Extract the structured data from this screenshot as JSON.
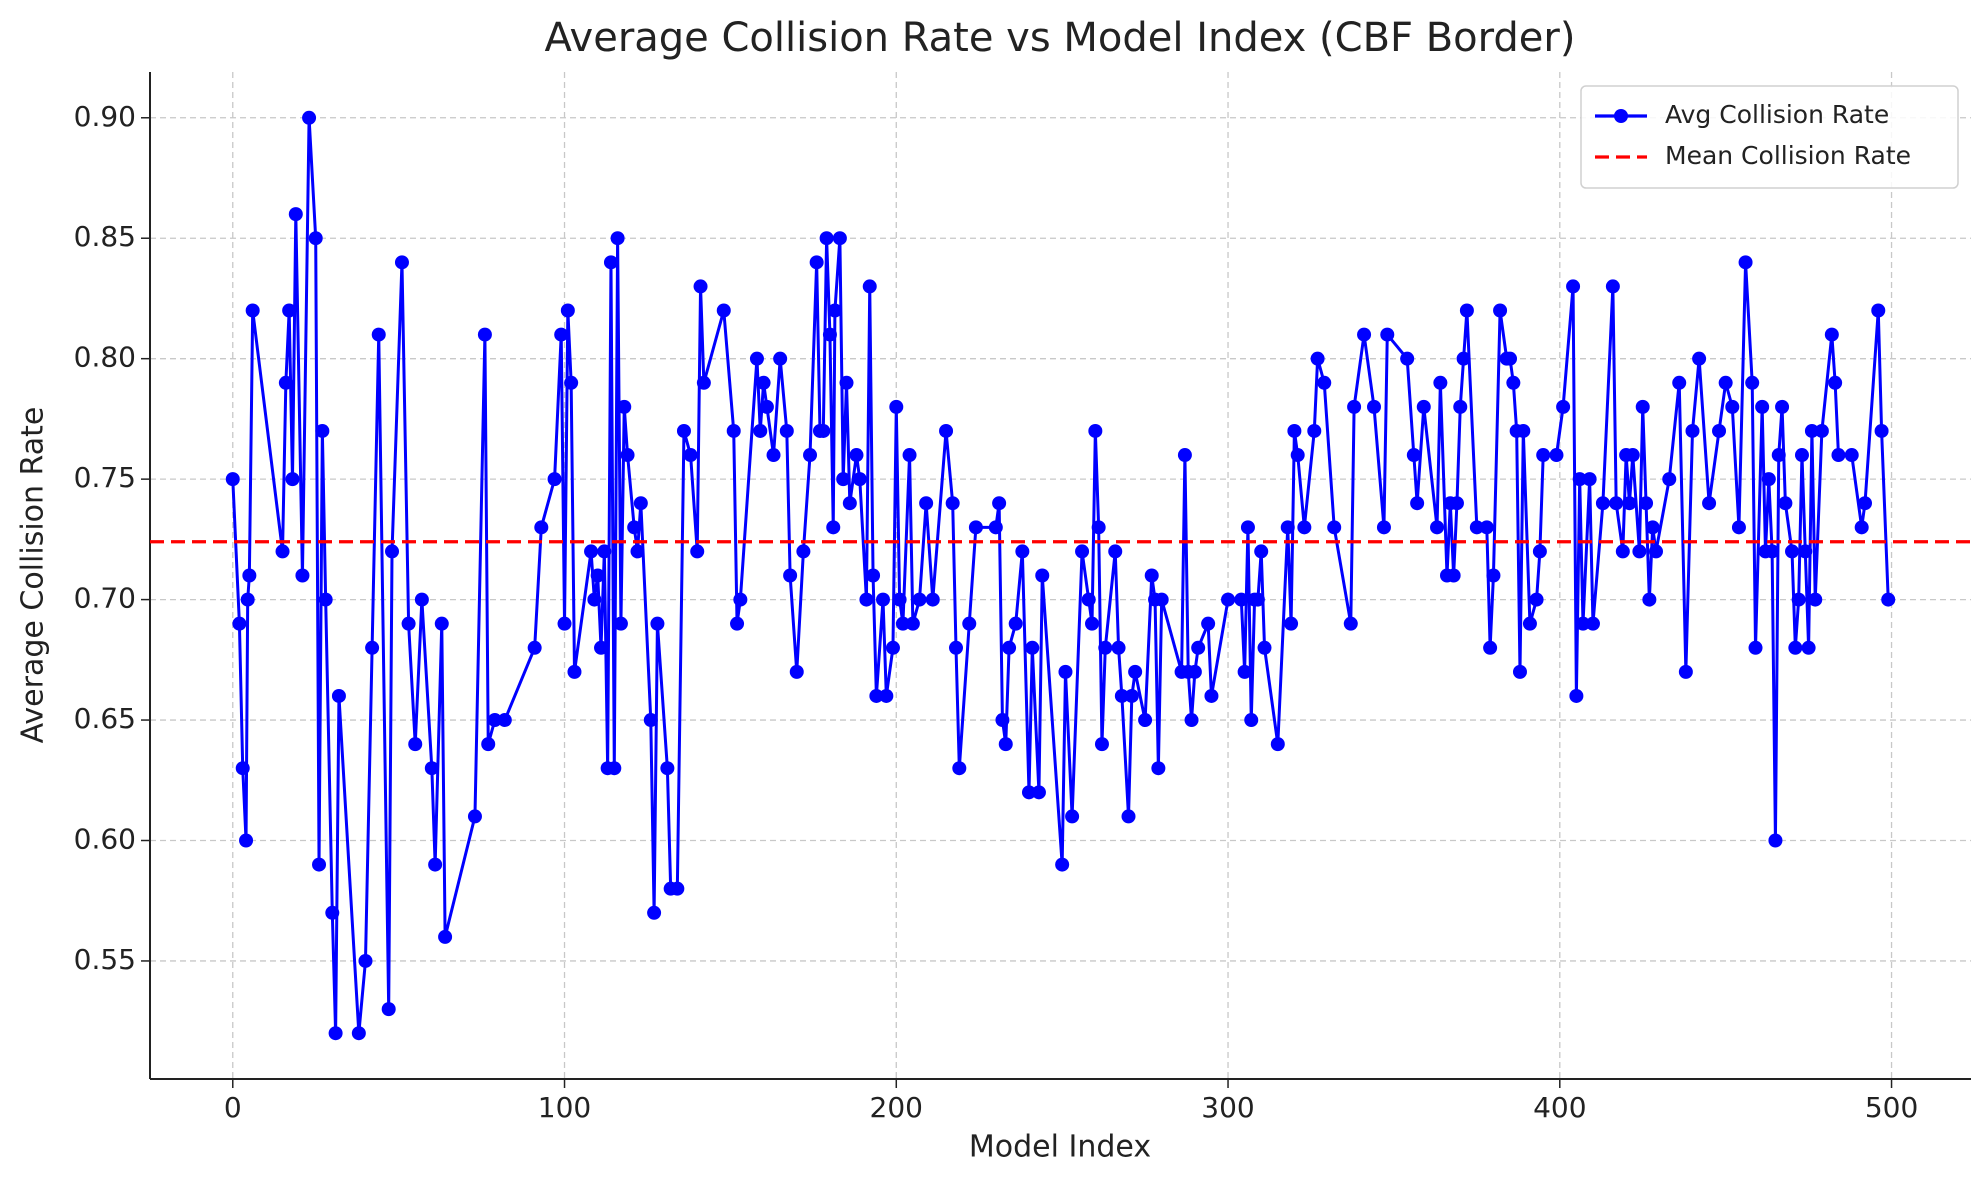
{
  "chart_data": {
    "type": "line",
    "title": "Average Collision Rate vs Model Index (CBF Border)",
    "x_label": "Model Index",
    "y_label": "Average Collision Rate",
    "x": [
      0,
      2,
      3,
      4,
      4.5,
      5,
      6,
      15,
      16,
      17,
      18,
      19,
      21,
      23,
      25,
      26,
      27,
      28,
      30,
      31,
      32,
      38,
      40,
      42,
      44,
      47,
      48,
      51,
      53,
      55,
      57,
      60,
      61,
      63,
      64,
      73,
      76,
      77,
      79,
      82,
      91,
      93,
      97,
      99,
      100,
      101,
      102,
      103,
      108,
      109,
      110,
      111,
      112,
      113,
      114,
      115,
      116,
      117,
      118,
      119,
      121,
      122,
      123,
      126,
      127,
      128,
      131,
      132,
      134,
      136,
      138,
      140,
      141,
      142,
      148,
      151,
      152,
      153,
      158,
      159,
      160,
      161,
      163,
      165,
      167,
      168,
      170,
      172,
      174,
      176,
      177,
      178,
      179,
      180,
      181,
      181.5,
      183,
      184,
      185,
      186,
      188,
      189,
      191,
      192,
      193,
      194,
      196,
      197,
      199,
      200,
      201,
      202,
      204,
      205,
      207,
      209,
      211,
      215,
      217,
      218,
      219,
      222,
      224,
      230,
      231,
      232,
      233,
      234,
      236,
      238,
      240,
      241,
      243,
      244,
      250,
      251,
      253,
      256,
      258,
      259,
      260,
      261,
      262,
      263,
      266,
      267,
      268,
      270,
      271,
      272,
      275,
      277,
      278,
      279,
      280,
      286,
      287,
      288,
      289,
      290,
      291,
      294,
      295,
      300,
      304,
      305,
      306,
      307,
      308,
      309,
      310,
      311,
      315,
      318,
      319,
      320,
      321,
      323,
      326,
      327,
      329,
      332,
      337,
      338,
      341,
      344,
      347,
      348,
      354,
      356,
      357,
      359,
      363,
      364,
      366,
      367,
      368,
      369,
      370,
      371,
      372,
      375,
      378,
      379,
      380,
      382,
      384,
      385,
      386,
      387,
      388,
      389,
      391,
      393,
      394,
      395,
      399,
      401,
      404,
      405,
      406,
      407,
      409,
      410,
      413,
      416,
      417,
      419,
      420,
      421,
      422,
      424,
      425,
      426,
      427,
      428,
      429,
      433,
      436,
      438,
      440,
      442,
      445,
      448,
      450,
      452,
      454,
      456,
      458,
      459,
      461,
      462,
      463,
      464,
      465,
      466,
      467,
      468,
      470,
      471,
      472,
      473,
      474,
      475,
      476,
      477,
      479,
      482,
      483,
      484,
      488,
      491,
      492,
      496,
      497,
      499
    ],
    "series": [
      {
        "name": "Avg Collision Rate",
        "color": "#0000ff",
        "values": [
          0.75,
          0.69,
          0.63,
          0.6,
          0.7,
          0.71,
          0.82,
          0.72,
          0.79,
          0.82,
          0.75,
          0.86,
          0.71,
          0.9,
          0.85,
          0.59,
          0.77,
          0.7,
          0.57,
          0.52,
          0.66,
          0.52,
          0.55,
          0.68,
          0.81,
          0.53,
          0.72,
          0.84,
          0.69,
          0.64,
          0.7,
          0.63,
          0.59,
          0.69,
          0.56,
          0.61,
          0.81,
          0.64,
          0.65,
          0.65,
          0.68,
          0.73,
          0.75,
          0.81,
          0.69,
          0.82,
          0.79,
          0.67,
          0.72,
          0.7,
          0.71,
          0.68,
          0.72,
          0.63,
          0.84,
          0.63,
          0.85,
          0.69,
          0.78,
          0.76,
          0.73,
          0.72,
          0.74,
          0.65,
          0.57,
          0.69,
          0.63,
          0.58,
          0.58,
          0.77,
          0.76,
          0.72,
          0.83,
          0.79,
          0.82,
          0.77,
          0.69,
          0.7,
          0.8,
          0.77,
          0.79,
          0.78,
          0.76,
          0.8,
          0.77,
          0.71,
          0.67,
          0.72,
          0.76,
          0.84,
          0.77,
          0.77,
          0.85,
          0.81,
          0.73,
          0.82,
          0.85,
          0.75,
          0.79,
          0.74,
          0.76,
          0.75,
          0.7,
          0.83,
          0.71,
          0.66,
          0.7,
          0.66,
          0.68,
          0.78,
          0.7,
          0.69,
          0.76,
          0.69,
          0.7,
          0.74,
          0.7,
          0.77,
          0.74,
          0.68,
          0.63,
          0.69,
          0.73,
          0.73,
          0.74,
          0.65,
          0.64,
          0.68,
          0.69,
          0.72,
          0.62,
          0.68,
          0.62,
          0.71,
          0.59,
          0.67,
          0.61,
          0.72,
          0.7,
          0.69,
          0.77,
          0.73,
          0.64,
          0.68,
          0.72,
          0.68,
          0.66,
          0.61,
          0.66,
          0.67,
          0.65,
          0.71,
          0.7,
          0.63,
          0.7,
          0.67,
          0.76,
          0.67,
          0.65,
          0.67,
          0.68,
          0.69,
          0.66,
          0.7,
          0.7,
          0.67,
          0.73,
          0.65,
          0.7,
          0.7,
          0.72,
          0.68,
          0.64,
          0.73,
          0.69,
          0.77,
          0.76,
          0.73,
          0.77,
          0.8,
          0.79,
          0.73,
          0.69,
          0.78,
          0.81,
          0.78,
          0.73,
          0.81,
          0.8,
          0.76,
          0.74,
          0.78,
          0.73,
          0.79,
          0.71,
          0.74,
          0.71,
          0.74,
          0.78,
          0.8,
          0.82,
          0.73,
          0.73,
          0.68,
          0.71,
          0.82,
          0.8,
          0.8,
          0.79,
          0.77,
          0.67,
          0.77,
          0.69,
          0.7,
          0.72,
          0.76,
          0.76,
          0.78,
          0.83,
          0.66,
          0.75,
          0.69,
          0.75,
          0.69,
          0.74,
          0.83,
          0.74,
          0.72,
          0.76,
          0.74,
          0.76,
          0.72,
          0.78,
          0.74,
          0.7,
          0.73,
          0.72,
          0.75,
          0.79,
          0.67,
          0.77,
          0.8,
          0.74,
          0.77,
          0.79,
          0.78,
          0.73,
          0.84,
          0.79,
          0.68,
          0.78,
          0.72,
          0.75,
          0.72,
          0.6,
          0.76,
          0.78,
          0.74,
          0.72,
          0.68,
          0.7,
          0.76,
          0.72,
          0.68,
          0.77,
          0.7,
          0.77,
          0.81,
          0.79,
          0.76,
          0.76,
          0.73,
          0.74,
          0.82,
          0.77,
          0.7
        ]
      }
    ],
    "reference_lines": [
      {
        "name": "Mean Collision Rate",
        "value": 0.724,
        "color": "#ff0000",
        "style": "dashed"
      }
    ],
    "xlim": [
      -24.95,
      523.95
    ],
    "ylim": [
      0.501,
      0.919
    ],
    "xticks": [
      0,
      100,
      200,
      300,
      400,
      500
    ],
    "yticks": [
      0.55,
      {
        "value": 0.6,
        "label": "0.60"
      },
      0.65,
      {
        "value": 0.7,
        "label": "0.70"
      },
      0.75,
      {
        "value": 0.8,
        "label": "0.80"
      },
      0.85,
      {
        "value": 0.9,
        "label": "0.90"
      }
    ],
    "grid": true,
    "legend": "upper right"
  }
}
